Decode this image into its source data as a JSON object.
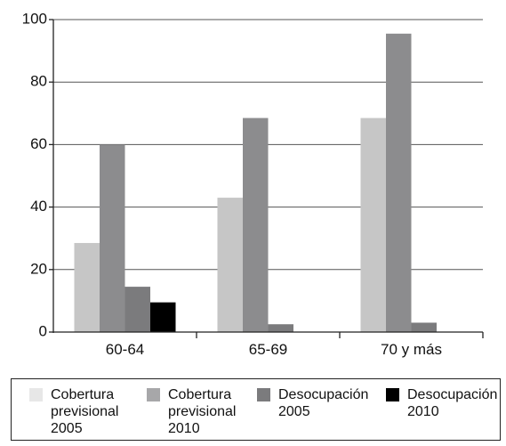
{
  "chart_data": {
    "type": "bar",
    "categories": [
      "60-64",
      "65-69",
      "70 y más"
    ],
    "series": [
      {
        "name": "Cobertura previsional 2005",
        "values": [
          28.5,
          43,
          68.5
        ],
        "color": "#c6c6c6"
      },
      {
        "name": "Cobertura previsional 2010",
        "values": [
          60,
          68.5,
          95.5
        ],
        "color": "#8c8c8e"
      },
      {
        "name": "Desocupación 2005",
        "values": [
          14.5,
          2.5,
          3
        ],
        "color": "#7b7b7d"
      },
      {
        "name": "Desocupación 2010",
        "values": [
          9.5,
          0,
          0
        ],
        "color": "#000000"
      }
    ],
    "yticks": [
      "0",
      "20",
      "40",
      "60",
      "80",
      "100"
    ],
    "ylim": [
      0,
      100
    ],
    "grid": true,
    "legend_position": "bottom",
    "title": "",
    "xlabel": "",
    "ylabel": ""
  },
  "legend": {
    "items": [
      {
        "line1": "Cobertura",
        "line2": "previsional",
        "line3": "2005",
        "swatch": "#e7e7e7"
      },
      {
        "line1": "Cobertura",
        "line2": "previsional",
        "line3": "2010",
        "swatch": "#a7a7a9"
      },
      {
        "line1": "Desocupación",
        "line2": "2005",
        "line3": "",
        "swatch": "#7b7b7d"
      },
      {
        "line1": "Desocupación",
        "line2": "2010",
        "line3": "",
        "swatch": "#000000"
      }
    ]
  }
}
